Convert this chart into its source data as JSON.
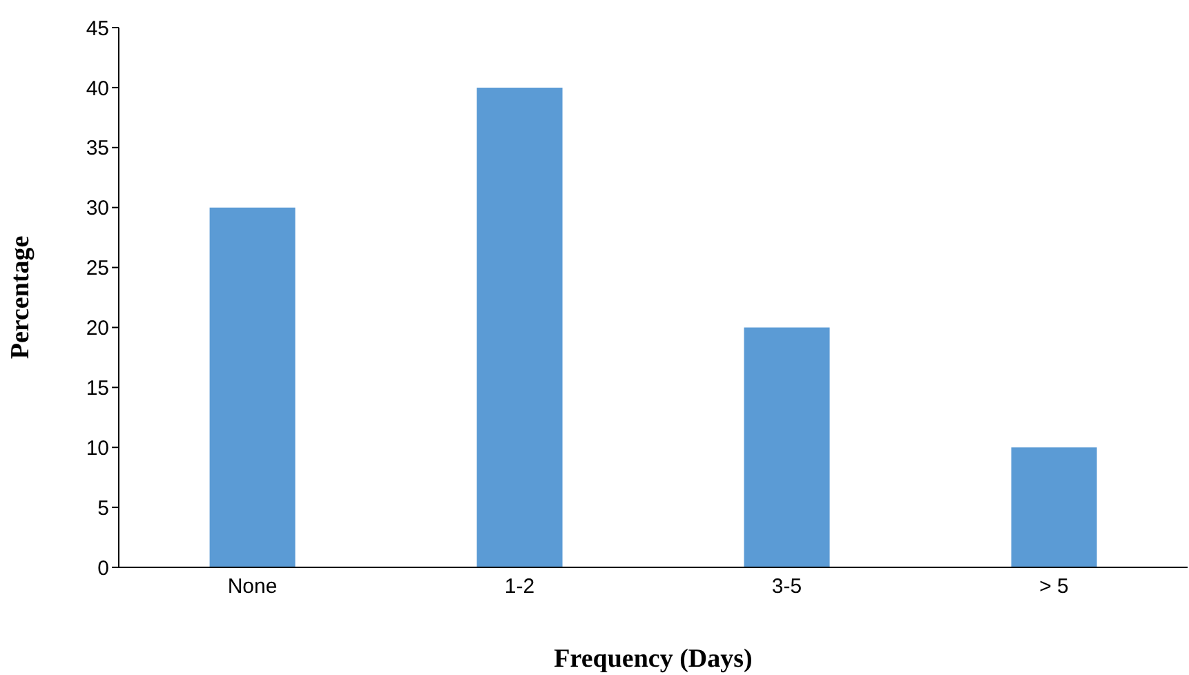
{
  "chart_data": {
    "type": "bar",
    "xlabel": "Frequency (Days)",
    "ylabel": "Percentage",
    "categories": [
      "None",
      "1-2",
      "3-5",
      "> 5"
    ],
    "values": [
      30,
      40,
      20,
      10
    ],
    "color": "#5b9bd5",
    "ylim": [
      0,
      45
    ],
    "yticks": [
      0,
      5,
      10,
      15,
      20,
      25,
      30,
      35,
      40,
      45
    ],
    "grid": false,
    "legend": false
  }
}
